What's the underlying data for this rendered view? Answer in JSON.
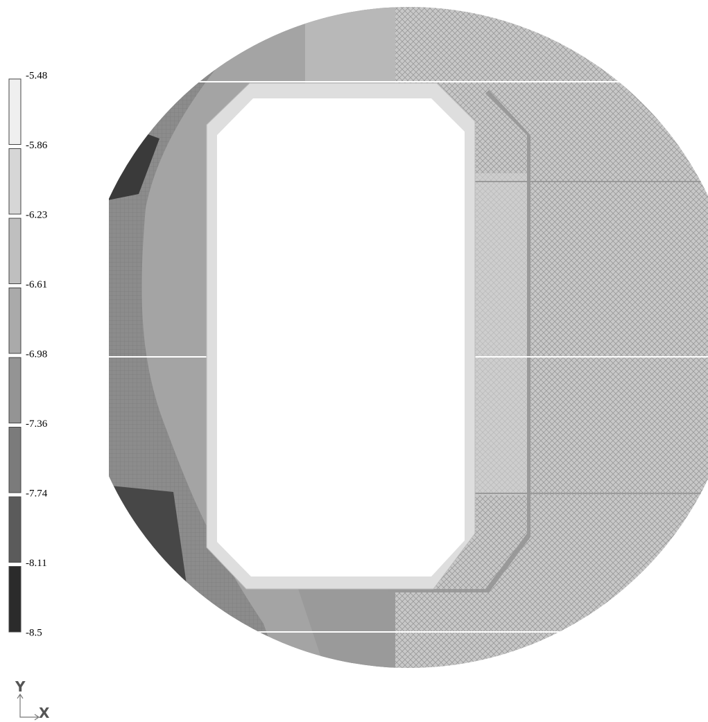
{
  "legend": {
    "labels": [
      "-5.48",
      "-5.86",
      "-6.23",
      "-6.61",
      "-6.98",
      "-7.36",
      "-7.74",
      "-8.11",
      "-8.5"
    ],
    "colors": [
      "#efefef",
      "#d6d6d6",
      "#bfbfbf",
      "#aaaaaa",
      "#949494",
      "#7b7b7b",
      "#5b5b5b",
      "#2b2b2b"
    ]
  },
  "axes": {
    "y": "Y",
    "x": "X"
  }
}
